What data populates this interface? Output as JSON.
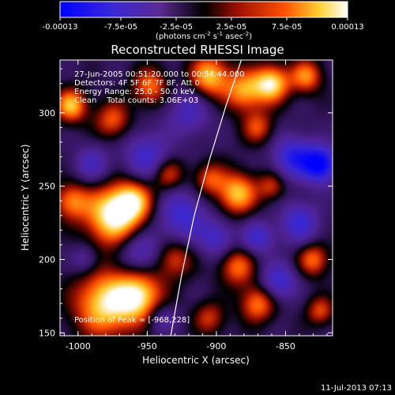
{
  "chart_data": {
    "type": "heatmap",
    "title": "Reconstructed RHESSI Image",
    "xlabel": "Heliocentric X (arcsec)",
    "ylabel": "Heliocentric Y (arcsec)",
    "xlim": [
      -1013,
      -816
    ],
    "ylim": [
      148,
      336
    ],
    "x_ticks": [
      -1000,
      -950,
      -900,
      -850
    ],
    "x_tick_labels": [
      "-1000",
      "-950",
      "-900",
      "-850"
    ],
    "y_ticks": [
      150,
      200,
      250,
      300
    ],
    "y_tick_labels": [
      "150",
      "200",
      "250",
      "300"
    ],
    "colorbar": {
      "min": -0.00013,
      "max": 0.00013,
      "tick_labels": [
        "-0.00013",
        "-7.5e-05",
        "-2.5e-05",
        "2.5e-05",
        "7.5e-05",
        "0.00013"
      ],
      "unit_parts": [
        "(photons cm",
        "-2",
        " s",
        "-1",
        " asec",
        "-2",
        ")"
      ]
    },
    "colors": [
      "#0000ff",
      "#4a1a9a",
      "#000000",
      "#b01000",
      "#ff6000",
      "#ffff80",
      "#ffffff"
    ],
    "annotations": [
      "27-Jun-2005 00:51:20.000 to 00:54:44.000",
      "Detectors: 4F 5F 6F 7F 8F, Att 0",
      "Energy Range: 25.0 - 50.0 keV",
      "Clean    Total counts: 3.06E+03"
    ],
    "peak_label": "Position of Peak = [-968,228]",
    "peak": [
      -968,
      228
    ],
    "limb_curve": [
      [
        -933,
        148
      ],
      [
        -925,
        190
      ],
      [
        -916,
        230
      ],
      [
        -905,
        268
      ],
      [
        -893,
        305
      ],
      [
        -882,
        336
      ]
    ],
    "blobs": [
      {
        "x": -975,
        "y": 230,
        "v": 1.0,
        "s": 14
      },
      {
        "x": -960,
        "y": 240,
        "v": 0.7,
        "s": 10
      },
      {
        "x": -980,
        "y": 170,
        "v": 0.9,
        "s": 16
      },
      {
        "x": -955,
        "y": 175,
        "v": 0.8,
        "s": 12
      },
      {
        "x": -1005,
        "y": 305,
        "v": 0.8,
        "s": 8
      },
      {
        "x": -1005,
        "y": 240,
        "v": 0.6,
        "s": 9
      },
      {
        "x": -975,
        "y": 295,
        "v": 0.55,
        "s": 9
      },
      {
        "x": -948,
        "y": 318,
        "v": 0.6,
        "s": 9
      },
      {
        "x": -935,
        "y": 258,
        "v": 0.55,
        "s": 8
      },
      {
        "x": -930,
        "y": 200,
        "v": 0.5,
        "s": 9
      },
      {
        "x": -905,
        "y": 325,
        "v": 0.8,
        "s": 10
      },
      {
        "x": -880,
        "y": 315,
        "v": 0.7,
        "s": 10
      },
      {
        "x": -860,
        "y": 320,
        "v": 0.9,
        "s": 9
      },
      {
        "x": -835,
        "y": 325,
        "v": 0.65,
        "s": 8
      },
      {
        "x": -870,
        "y": 290,
        "v": 0.5,
        "s": 8
      },
      {
        "x": -885,
        "y": 245,
        "v": 0.8,
        "s": 10
      },
      {
        "x": -905,
        "y": 255,
        "v": 0.5,
        "s": 8
      },
      {
        "x": -860,
        "y": 250,
        "v": 0.45,
        "s": 7
      },
      {
        "x": -885,
        "y": 195,
        "v": 0.6,
        "s": 9
      },
      {
        "x": -870,
        "y": 170,
        "v": 0.65,
        "s": 9
      },
      {
        "x": -830,
        "y": 200,
        "v": 0.6,
        "s": 8
      },
      {
        "x": -825,
        "y": 165,
        "v": 0.5,
        "s": 7
      },
      {
        "x": -905,
        "y": 160,
        "v": 0.45,
        "s": 8
      },
      {
        "x": -955,
        "y": 205,
        "v": -0.5,
        "s": 10
      },
      {
        "x": -950,
        "y": 270,
        "v": -0.55,
        "s": 12
      },
      {
        "x": -990,
        "y": 265,
        "v": -0.45,
        "s": 9
      },
      {
        "x": -920,
        "y": 300,
        "v": -0.45,
        "s": 11
      },
      {
        "x": -925,
        "y": 230,
        "v": -0.6,
        "s": 12
      },
      {
        "x": -900,
        "y": 215,
        "v": -0.5,
        "s": 9
      },
      {
        "x": -845,
        "y": 270,
        "v": -0.7,
        "s": 10
      },
      {
        "x": -825,
        "y": 265,
        "v": -1.0,
        "s": 9
      },
      {
        "x": -840,
        "y": 225,
        "v": -0.6,
        "s": 10
      },
      {
        "x": -870,
        "y": 215,
        "v": -0.55,
        "s": 8
      },
      {
        "x": -855,
        "y": 185,
        "v": -0.6,
        "s": 9
      },
      {
        "x": -995,
        "y": 200,
        "v": -0.35,
        "s": 7
      },
      {
        "x": -940,
        "y": 160,
        "v": -0.35,
        "s": 8
      }
    ]
  },
  "footer": {
    "timestamp": "11-Jul-2013 07:13"
  }
}
